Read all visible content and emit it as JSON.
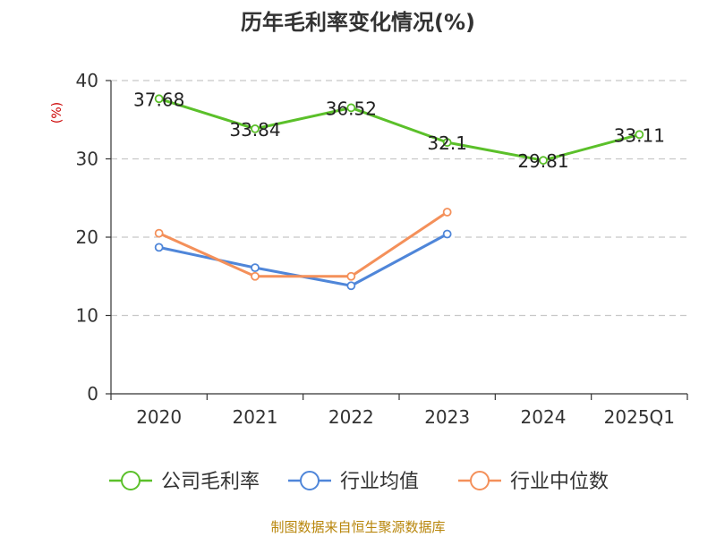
{
  "chart_data": {
    "type": "line",
    "title": "历年毛利率变化情况(%)",
    "ylabel": "(%)",
    "xlabel": "",
    "categories": [
      "2020",
      "2021",
      "2022",
      "2023",
      "2024",
      "2025Q1"
    ],
    "ylim": [
      0,
      40
    ],
    "yticks": [
      0,
      10,
      20,
      30,
      40
    ],
    "grid": true,
    "legend_position": "bottom",
    "series": [
      {
        "name": "公司毛利率",
        "color": "#5bc02a",
        "values": [
          37.68,
          33.84,
          36.52,
          32.1,
          29.81,
          33.11
        ],
        "labels": [
          "37.68",
          "33.84",
          "36.52",
          "32.1",
          "29.81",
          "33.11"
        ]
      },
      {
        "name": "行业均值",
        "color": "#4f86d9",
        "values": [
          18.7,
          16.1,
          13.8,
          20.4,
          null,
          null
        ]
      },
      {
        "name": "行业中位数",
        "color": "#f4905a",
        "values": [
          20.5,
          15.0,
          15.0,
          23.2,
          null,
          null
        ]
      }
    ],
    "source": "制图数据来自恒生聚源数据库"
  }
}
